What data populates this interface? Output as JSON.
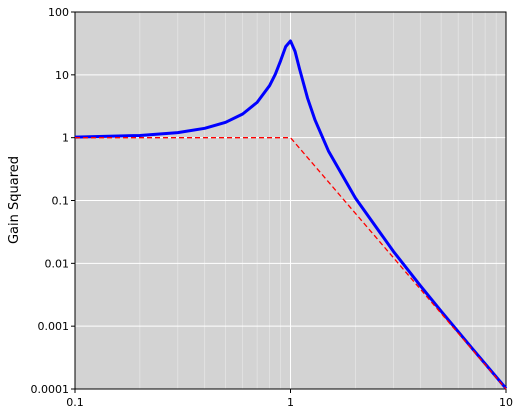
{
  "chart_data": {
    "type": "line",
    "y_label": "Gain Squared",
    "x": [
      0.1,
      0.2,
      0.3,
      0.4,
      0.5,
      0.6,
      0.7,
      0.8,
      0.85,
      0.9,
      0.95,
      1.0,
      1.05,
      1.1,
      1.2,
      1.3,
      1.5,
      2,
      3,
      4,
      5,
      7,
      10
    ],
    "series": [
      {
        "color": "#0000ff",
        "style": "solid",
        "x": [
          0.1,
          0.2,
          0.3,
          0.4,
          0.5,
          0.6,
          0.7,
          0.8,
          0.85,
          0.9,
          0.95,
          1.0,
          1.05,
          1.1,
          1.2,
          1.3,
          1.5,
          2,
          3,
          4,
          5,
          7,
          10
        ],
        "values": [
          1.02,
          1.084,
          1.204,
          1.408,
          1.755,
          2.381,
          3.646,
          6.752,
          10.21,
          16.81,
          28.1,
          34.6,
          23.6,
          12.64,
          4.25,
          1.905,
          0.6144,
          0.1097,
          0.01556,
          0.004435,
          0.001734,
          0.0004338,
          0.000102
        ]
      },
      {
        "color": "#ff0000",
        "style": "dashed",
        "x": [
          0.1,
          1,
          10
        ],
        "values": [
          1,
          1,
          0.0001
        ]
      }
    ],
    "xscale": "log",
    "yscale": "log",
    "xlim": [
      0.1,
      10
    ],
    "ylim": [
      0.0001,
      100
    ],
    "xticks": [
      0.1,
      1,
      10
    ],
    "yticks": [
      0.0001,
      0.001,
      0.01,
      0.1,
      1,
      10,
      100
    ],
    "grid": true,
    "minor_grid_x": true,
    "background": "#d3d3d3"
  }
}
